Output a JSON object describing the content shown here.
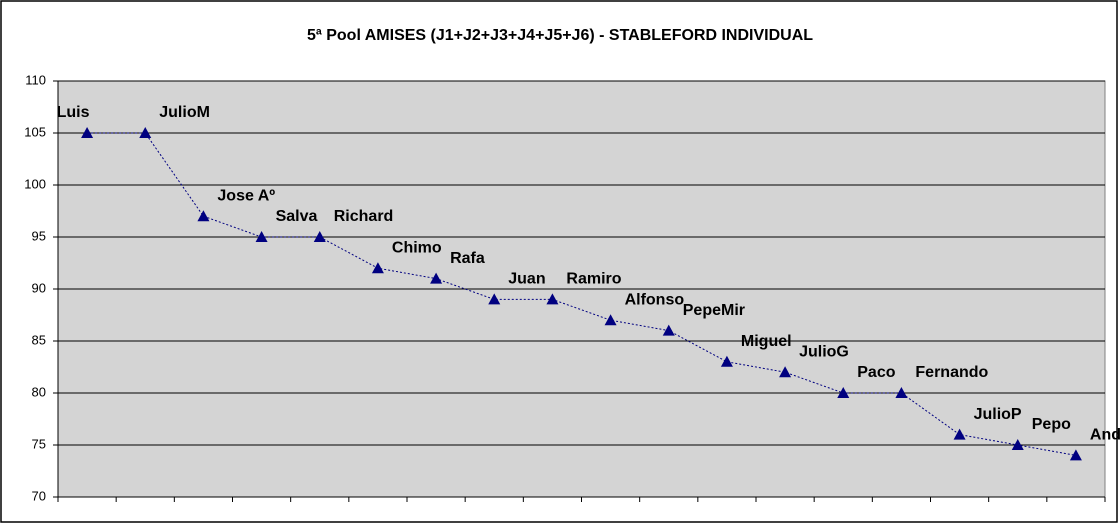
{
  "chart_data": {
    "type": "line",
    "title": "5ª Pool AMISES (J1+J2+J3+J4+J5+J6) - STABLEFORD INDIVIDUAL",
    "categories": [
      "Luis",
      "JulioM",
      "Jose Aº",
      "Salva",
      "Richard",
      "Chimo",
      "Rafa",
      "Juan",
      "Ramiro",
      "Alfonso",
      "PepeMir",
      "Miguel",
      "JulioG",
      "Paco",
      "Fernando",
      "JulioP",
      "Pepo",
      "Andres"
    ],
    "values": [
      105,
      105,
      97,
      95,
      95,
      92,
      91,
      89,
      89,
      87,
      86,
      83,
      82,
      80,
      80,
      76,
      75,
      74
    ],
    "color": "#000080",
    "ylim": [
      70,
      110
    ],
    "yticks": [
      70,
      75,
      80,
      85,
      90,
      95,
      100,
      105,
      110
    ],
    "grid": true
  }
}
